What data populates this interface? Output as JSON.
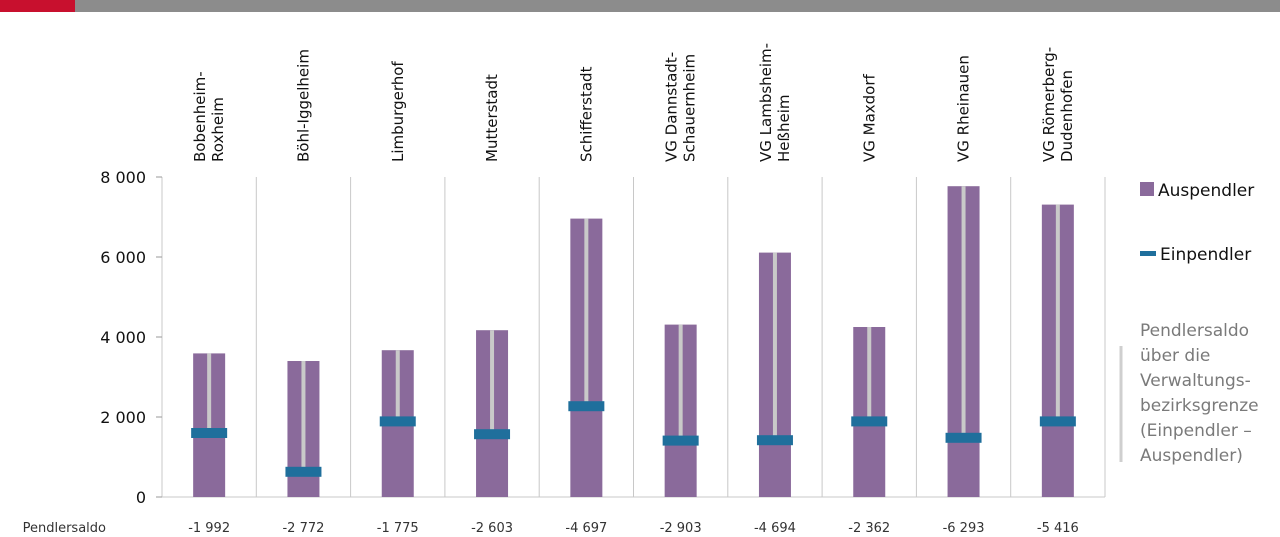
{
  "colors": {
    "auspendler": "#8a6a9b",
    "einpendler": "#1f6f9c",
    "saldo_line": "#c9c9c9",
    "grid": "#c8c8c8",
    "top_bar": "#8c8c8c",
    "top_accent": "#c8102e"
  },
  "chart_data": {
    "type": "bar",
    "categories": [
      [
        "Bobenheim-",
        "Roxheim"
      ],
      [
        "Böhl-Iggelheim"
      ],
      [
        "Limburgerhof"
      ],
      [
        "Mutterstadt"
      ],
      [
        "Schifferstadt"
      ],
      [
        "VG Dannstadt-",
        "Schauernheim"
      ],
      [
        "VG Lambsheim-",
        "Heßheim"
      ],
      [
        "VG Maxdorf"
      ],
      [
        "VG Rheinauen"
      ],
      [
        "VG Römerberg-",
        "Dudenhofen"
      ]
    ],
    "series": [
      {
        "name": "Auspendler",
        "values": [
          3590,
          3400,
          3670,
          4170,
          6960,
          4310,
          6110,
          4250,
          7770,
          7310
        ]
      },
      {
        "name": "Einpendler",
        "values": [
          1600,
          630,
          1890,
          1570,
          2270,
          1410,
          1420,
          1890,
          1480,
          1890
        ]
      }
    ],
    "pendlersaldo_label": "Pendlersaldo",
    "pendlersaldo": [
      "-1 992",
      "-2 772",
      "-1 775",
      "-2 603",
      "-4 697",
      "-2 903",
      "-4 694",
      "-2 362",
      "-6 293",
      "-5 416"
    ],
    "ylim": [
      0,
      8000
    ],
    "yticks": [
      {
        "value": 0,
        "label": "0"
      },
      {
        "value": 2000,
        "label": "2 000"
      },
      {
        "value": 4000,
        "label": "4 000"
      },
      {
        "value": 6000,
        "label": "6 000"
      },
      {
        "value": 8000,
        "label": "8 000"
      }
    ],
    "grid": "vertical separators between categories",
    "legend": {
      "placement": "right",
      "items": [
        "Auspendler",
        "Einpendler"
      ]
    },
    "annotation_lines": [
      "Pendlersaldo",
      "über die",
      "Verwaltungs-",
      "bezirksgrenze",
      "(Einpendler –",
      "Auspendler)"
    ]
  }
}
